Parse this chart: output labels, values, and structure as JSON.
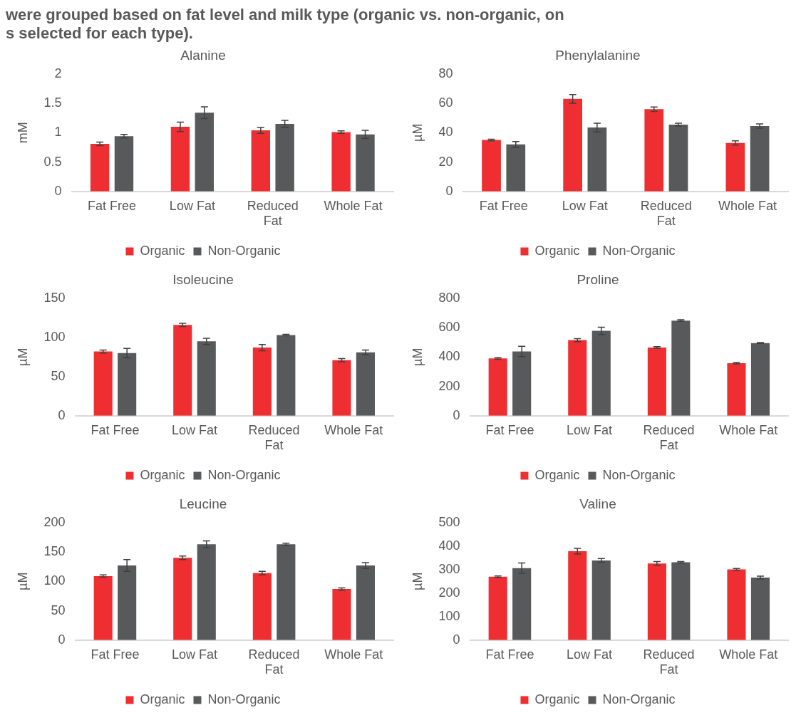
{
  "chart_data": [
    {
      "type": "bar",
      "title": "Alanine",
      "ylabel": "mM",
      "categories": [
        "Fat Free",
        "Low Fat",
        "Reduced Fat",
        "Whole Fat"
      ],
      "ylim": [
        0,
        2
      ],
      "yticks": [
        0,
        0.5,
        1,
        1.5,
        2
      ],
      "grid": false,
      "legend": "bottom",
      "annotations": [
        "were grouped based on fat level and milk type (organic vs. non-organic, on",
        "s selected for each type)."
      ],
      "series": [
        {
          "name": "Organic",
          "color": "#ee2e31",
          "values": [
            0.81,
            1.1,
            1.04,
            1.01
          ],
          "errors": [
            0.03,
            0.08,
            0.05,
            0.02
          ]
        },
        {
          "name": "Non-Organic",
          "color": "#58595b",
          "values": [
            0.94,
            1.34,
            1.15,
            0.97
          ],
          "errors": [
            0.03,
            0.1,
            0.06,
            0.07
          ]
        }
      ]
    },
    {
      "type": "bar",
      "title": "Phenylalanine",
      "ylabel": "µM",
      "categories": [
        "Fat Free",
        "Low Fat",
        "Reduced Fat",
        "Whole Fat"
      ],
      "ylim": [
        0,
        80
      ],
      "yticks": [
        0,
        20,
        40,
        60,
        80
      ],
      "grid": false,
      "legend": "bottom",
      "series": [
        {
          "name": "Organic",
          "color": "#ee2e31",
          "values": [
            35,
            63,
            56,
            33
          ],
          "errors": [
            0.5,
            3,
            1.5,
            1.5
          ]
        },
        {
          "name": "Non-Organic",
          "color": "#58595b",
          "values": [
            32,
            43.5,
            45.5,
            44.5
          ],
          "errors": [
            2,
            3,
            1,
            1.5
          ]
        }
      ]
    },
    {
      "type": "bar",
      "title": "Isoleucine",
      "ylabel": "µM",
      "categories": [
        "Fat Free",
        "Low Fat",
        "Reduced Fat",
        "Whole Fat"
      ],
      "ylim": [
        0,
        150
      ],
      "yticks": [
        0,
        50,
        100,
        150
      ],
      "grid": false,
      "legend": "bottom",
      "series": [
        {
          "name": "Organic",
          "color": "#ee2e31",
          "values": [
            82,
            116,
            87,
            71
          ],
          "errors": [
            2,
            2,
            4,
            2
          ]
        },
        {
          "name": "Non-Organic",
          "color": "#58595b",
          "values": [
            80,
            95,
            103,
            81
          ],
          "errors": [
            6,
            4,
            1,
            3
          ]
        }
      ]
    },
    {
      "type": "bar",
      "title": "Proline",
      "ylabel": "µM",
      "categories": [
        "Fat Free",
        "Low Fat",
        "Reduced Fat",
        "Whole Fat"
      ],
      "ylim": [
        0,
        800
      ],
      "yticks": [
        0,
        200,
        400,
        600,
        800
      ],
      "grid": false,
      "legend": "bottom",
      "series": [
        {
          "name": "Organic",
          "color": "#ee2e31",
          "values": [
            390,
            515,
            465,
            358
          ],
          "errors": [
            5,
            10,
            5,
            5
          ]
        },
        {
          "name": "Non-Organic",
          "color": "#58595b",
          "values": [
            438,
            578,
            648,
            495
          ],
          "errors": [
            35,
            25,
            5,
            3
          ]
        }
      ]
    },
    {
      "type": "bar",
      "title": "Leucine",
      "ylabel": "µM",
      "categories": [
        "Fat Free",
        "Low Fat",
        "Reduced Fat",
        "Whole Fat"
      ],
      "ylim": [
        0,
        200
      ],
      "yticks": [
        0,
        50,
        100,
        150,
        200
      ],
      "grid": false,
      "legend": "bottom",
      "series": [
        {
          "name": "Organic",
          "color": "#ee2e31",
          "values": [
            109,
            140,
            114,
            87
          ],
          "errors": [
            2,
            3,
            3,
            2
          ]
        },
        {
          "name": "Non-Organic",
          "color": "#58595b",
          "values": [
            127,
            163,
            163,
            127
          ],
          "errors": [
            10,
            6,
            2,
            5
          ]
        }
      ]
    },
    {
      "type": "bar",
      "title": "Valine",
      "ylabel": "µM",
      "categories": [
        "Fat Free",
        "Low Fat",
        "Reduced Fat",
        "Whole Fat"
      ],
      "ylim": [
        0,
        500
      ],
      "yticks": [
        0,
        100,
        200,
        300,
        400,
        500
      ],
      "grid": false,
      "legend": "bottom",
      "series": [
        {
          "name": "Organic",
          "color": "#ee2e31",
          "values": [
            270,
            378,
            326,
            301
          ],
          "errors": [
            3,
            12,
            8,
            4
          ]
        },
        {
          "name": "Non-Organic",
          "color": "#58595b",
          "values": [
            306,
            339,
            331,
            266
          ],
          "errors": [
            22,
            8,
            3,
            6
          ]
        }
      ]
    }
  ]
}
